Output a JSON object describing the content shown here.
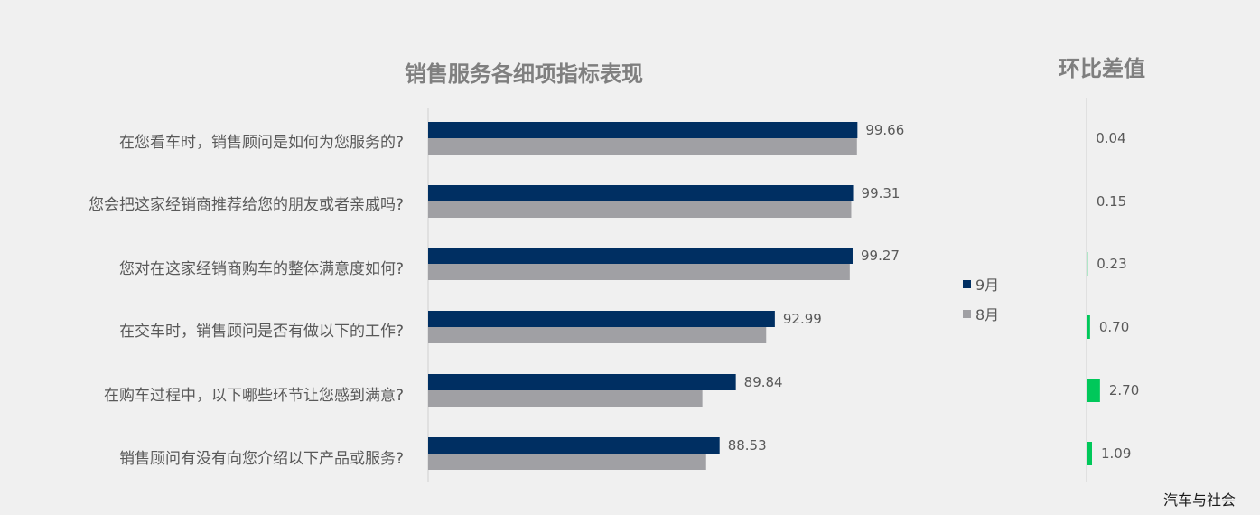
{
  "chart_data": {
    "type": "bar",
    "title": "销售服务各细项指标表现",
    "categories": [
      "在您看车时，销售顾问是如何为您服务的?",
      "您会把这家经销商推荐给您的朋友或者亲戚吗?",
      "您对在这家经销商购车的整体满意度如何?",
      "在交车时，销售顾问是否有做以下的工作?",
      "在购车过程中，以下哪些环节让您感到满意?",
      "销售顾问有没有向您介绍以下产品或服务?"
    ],
    "series": [
      {
        "name": "9月",
        "values": [
          99.66,
          99.31,
          99.27,
          92.99,
          89.84,
          88.53
        ],
        "color": "#002f62"
      },
      {
        "name": "8月",
        "values": [
          99.62,
          99.16,
          99.04,
          92.29,
          87.14,
          87.44
        ],
        "color": "#a0a0a4"
      }
    ],
    "value_labels_series": "9月",
    "legend_placement": "right",
    "grid": false,
    "xlim": [
      65,
      100
    ]
  },
  "diff_panel": {
    "title": "环比差值",
    "values": [
      "0.04",
      "0.15",
      "0.23",
      "0.70",
      "2.70",
      "1.09"
    ],
    "numeric_values": [
      0.04,
      0.15,
      0.23,
      0.7,
      2.7,
      1.09
    ],
    "bar_color": "#00c85a"
  },
  "watermark": "汽车与社会"
}
